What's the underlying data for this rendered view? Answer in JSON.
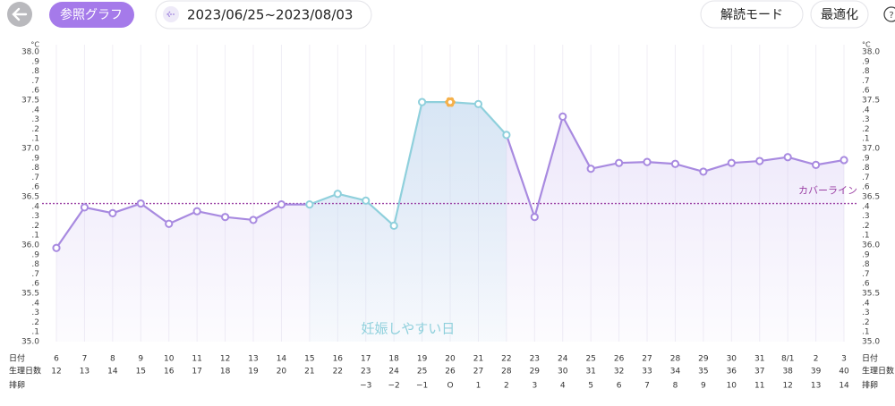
{
  "header": {
    "reference_button": "参照グラフ",
    "date_range": "2023/06/25~2023/08/03",
    "mode_button": "解読モード",
    "optimize_button": "最適化"
  },
  "chart_data": {
    "type": "line",
    "unit": "°C",
    "row_labels": [
      "日付",
      "生理日数",
      "排卵"
    ],
    "categories": [
      "6",
      "7",
      "8",
      "9",
      "10",
      "11",
      "12",
      "13",
      "14",
      "15",
      "16",
      "17",
      "18",
      "19",
      "20",
      "21",
      "22",
      "23",
      "24",
      "25",
      "26",
      "27",
      "28",
      "29",
      "30",
      "31",
      "8/1",
      "2",
      "3"
    ],
    "cycle_days": [
      "12",
      "13",
      "14",
      "15",
      "16",
      "17",
      "18",
      "19",
      "20",
      "21",
      "22",
      "23",
      "24",
      "25",
      "26",
      "27",
      "28",
      "29",
      "30",
      "31",
      "32",
      "33",
      "34",
      "35",
      "36",
      "37",
      "38",
      "39",
      "40"
    ],
    "ovulation_days": [
      null,
      null,
      null,
      null,
      null,
      null,
      null,
      null,
      null,
      null,
      null,
      "−3",
      "−2",
      "−1",
      "O",
      "1",
      "2",
      "3",
      "4",
      "5",
      "6",
      "7",
      "8",
      "9",
      "10",
      "11",
      "12",
      "13",
      "14"
    ],
    "values": [
      35.97,
      36.39,
      36.33,
      36.43,
      36.22,
      36.35,
      36.29,
      36.26,
      36.42,
      36.42,
      36.53,
      36.46,
      36.2,
      37.48,
      37.48,
      37.46,
      37.14,
      36.29,
      37.33,
      36.79,
      36.85,
      36.86,
      36.84,
      36.76,
      36.85,
      36.87,
      36.91,
      36.83,
      36.88
    ],
    "color": "#a88ae0",
    "fertile_window": {
      "label": "妊娠しやすい日",
      "from": "15",
      "to": "22",
      "color": "#8fd0dc"
    },
    "ovulation_marker": {
      "category": "20",
      "color": "#f5b04a"
    },
    "cover_line": {
      "label": "カバーライン",
      "value": 36.43,
      "color": "#9a3ea3"
    },
    "ylim": [
      35.0,
      38.0
    ],
    "yticks": [
      {
        "value": 35.0,
        "label": "35.0"
      },
      {
        "value": 35.1,
        "label": ".1"
      },
      {
        "value": 35.2,
        "label": ".2"
      },
      {
        "value": 35.3,
        "label": ".3"
      },
      {
        "value": 35.4,
        "label": ".4"
      },
      35.5,
      {
        "value": 35.6,
        "label": ".6"
      },
      {
        "value": 35.7,
        "label": ".7"
      },
      {
        "value": 35.8,
        "label": ".8"
      },
      {
        "value": 35.9,
        "label": ".9"
      },
      {
        "value": 36.0,
        "label": "36.0"
      },
      {
        "value": 36.1,
        "label": ".1"
      },
      {
        "value": 36.2,
        "label": ".2"
      },
      {
        "value": 36.3,
        "label": ".3"
      },
      {
        "value": 36.4,
        "label": ".4"
      },
      36.5,
      {
        "value": 36.6,
        "label": ".6"
      },
      {
        "value": 36.7,
        "label": ".7"
      },
      {
        "value": 36.8,
        "label": ".8"
      },
      {
        "value": 36.9,
        "label": ".9"
      },
      {
        "value": 37.0,
        "label": "37.0"
      },
      {
        "value": 37.1,
        "label": ".1"
      },
      {
        "value": 37.2,
        "label": ".2"
      },
      {
        "value": 37.3,
        "label": ".3"
      },
      {
        "value": 37.4,
        "label": ".4"
      },
      37.5,
      {
        "value": 37.6,
        "label": ".6"
      },
      {
        "value": 37.7,
        "label": ".7"
      },
      {
        "value": 37.8,
        "label": ".8"
      },
      {
        "value": 37.9,
        "label": ".9"
      },
      {
        "value": 38.0,
        "label": "38.0"
      }
    ]
  }
}
